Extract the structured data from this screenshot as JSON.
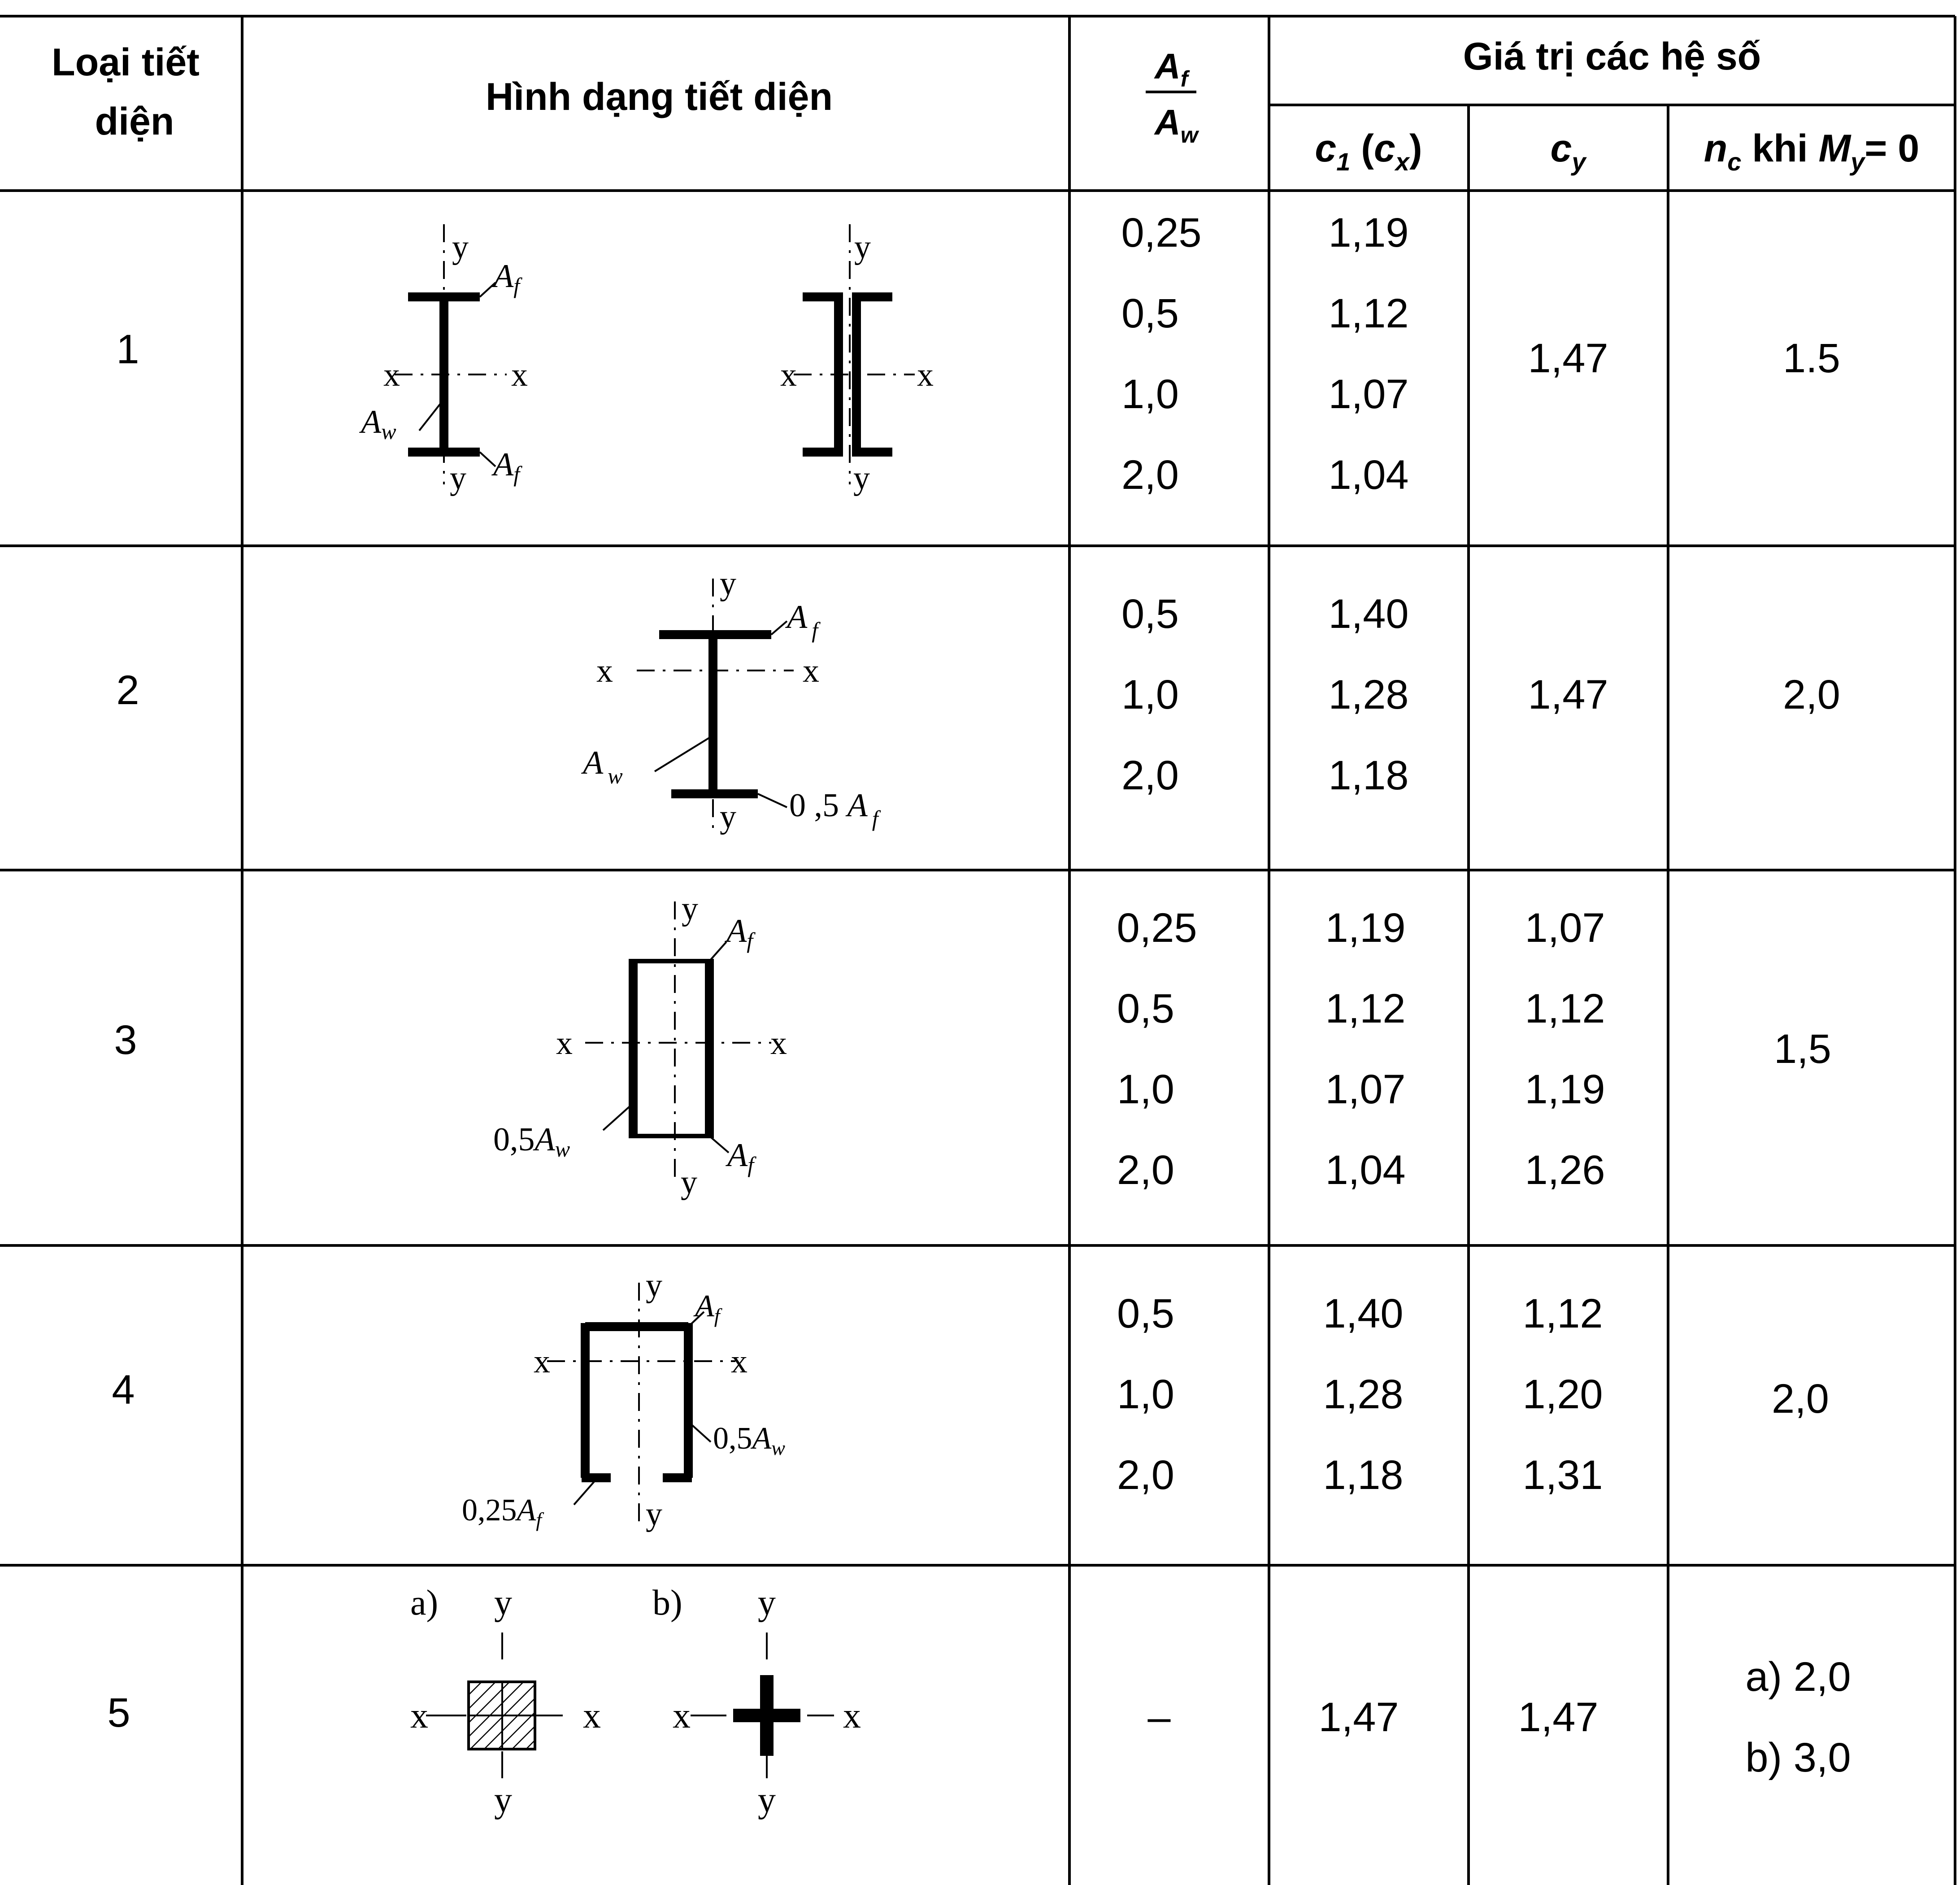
{
  "header": {
    "col_type_line1": "Loại tiết",
    "col_type_line2": "diện",
    "col_shape": "Hình dạng tiết diện",
    "ratio_num": "A",
    "ratio_num_sub": "f",
    "ratio_den": "A",
    "ratio_den_sub": "w",
    "group": "Giá trị các hệ số",
    "c1_main": "c",
    "c1_sub": "1",
    "c1_paren_open": " (",
    "c1_cx_main": "c",
    "c1_cx_sub": "x",
    "c1_paren_close": ")",
    "cy_main": "c",
    "cy_sub": "y",
    "nc_main": "n",
    "nc_sub": "c",
    "nc_khi": " khi ",
    "nc_my_main": "M",
    "nc_my_sub": "y",
    "nc_eq": "= 0"
  },
  "rows": [
    {
      "type": "1",
      "ratios": [
        "0,25",
        "0,5",
        "1,0",
        "2,0"
      ],
      "c1": [
        "1,19",
        "1,12",
        "1,07",
        "1,04"
      ],
      "cy": [
        "1,47"
      ],
      "nc": [
        "1.5"
      ]
    },
    {
      "type": "2",
      "ratios": [
        "0,5",
        "1,0",
        "2,0"
      ],
      "c1": [
        "1,40",
        "1,28",
        "1,18"
      ],
      "cy": [
        "1,47"
      ],
      "nc": [
        "2,0"
      ]
    },
    {
      "type": "3",
      "ratios": [
        "0,25",
        "0,5",
        "1,0",
        "2,0"
      ],
      "c1": [
        "1,19",
        "1,12",
        "1,07",
        "1,04"
      ],
      "cy": [
        "1,07",
        "1,12",
        "1,19",
        "1,26"
      ],
      "nc": [
        "1,5"
      ]
    },
    {
      "type": "4",
      "ratios": [
        "0,5",
        "1,0",
        "2,0"
      ],
      "c1": [
        "1,40",
        "1,28",
        "1,18"
      ],
      "cy": [
        "1,12",
        "1,20",
        "1,31"
      ],
      "nc": [
        "2,0"
      ]
    },
    {
      "type": "5",
      "ratios": [
        "–"
      ],
      "c1": [
        "1,47"
      ],
      "cy": [
        "1,47"
      ],
      "nc": [
        "a) 2,0",
        "b) 3,0"
      ]
    }
  ],
  "diagrams": {
    "axis_x": "x",
    "axis_y": "y",
    "A_letter": "A",
    "sub_f": "f",
    "sub_w": "w",
    "half_prefix": "0,5",
    "half_prefix_spaced": "0 ,5 ",
    "quarter_prefix": "0,25",
    "label_a": "a)",
    "label_b": "b)"
  }
}
